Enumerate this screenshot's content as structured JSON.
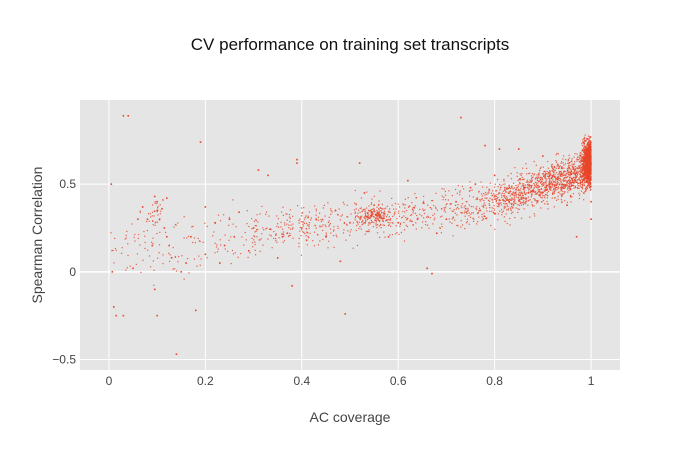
{
  "chart_data": {
    "type": "scatter",
    "title": "CV performance on training set transcripts",
    "xlabel": "AC coverage",
    "ylabel": "Spearman Correlation",
    "xlim": [
      -0.06,
      1.06
    ],
    "ylim": [
      -0.56,
      0.98
    ],
    "x_ticks": [
      0,
      0.2,
      0.4,
      0.6,
      0.8,
      1
    ],
    "x_tick_labels": [
      "0",
      "0.2",
      "0.4",
      "0.6",
      "0.8",
      "1"
    ],
    "y_ticks": [
      -0.5,
      0,
      0.5
    ],
    "y_tick_labels": [
      "−0.5",
      "0",
      "0.5"
    ],
    "grid": true,
    "legend": "none",
    "colors": {
      "marker": "#e8472b",
      "plot_bg": "#e5e5e5",
      "grid": "#ffffff"
    },
    "series": [
      {
        "points": [
          [
            0.03,
            0.89
          ],
          [
            0.04,
            0.89
          ],
          [
            0.005,
            0.5
          ],
          [
            0.007,
            0.0
          ],
          [
            0.01,
            -0.2
          ],
          [
            0.015,
            -0.25
          ],
          [
            0.03,
            -0.25
          ],
          [
            0.05,
            0.02
          ],
          [
            0.06,
            0.3
          ],
          [
            0.07,
            0.37
          ],
          [
            0.08,
            0.3
          ],
          [
            0.09,
            0.15
          ],
          [
            0.095,
            0.43
          ],
          [
            0.1,
            0.4
          ],
          [
            0.1,
            0.35
          ],
          [
            0.105,
            0.3
          ],
          [
            0.11,
            0.36
          ],
          [
            0.115,
            0.25
          ],
          [
            0.12,
            0.42
          ],
          [
            0.12,
            0.2
          ],
          [
            0.125,
            0.15
          ],
          [
            0.13,
            0.08
          ],
          [
            0.095,
            -0.1
          ],
          [
            0.1,
            -0.25
          ],
          [
            0.14,
            -0.47
          ],
          [
            0.15,
            0.0
          ],
          [
            0.16,
            0.05
          ],
          [
            0.17,
            0.2
          ],
          [
            0.18,
            -0.22
          ],
          [
            0.19,
            0.74
          ],
          [
            0.2,
            0.1
          ],
          [
            0.2,
            0.37
          ],
          [
            0.22,
            0.28
          ],
          [
            0.23,
            0.05
          ],
          [
            0.24,
            0.15
          ],
          [
            0.25,
            0.3
          ],
          [
            0.26,
            0.2
          ],
          [
            0.27,
            0.34
          ],
          [
            0.29,
            0.12
          ],
          [
            0.3,
            0.25
          ],
          [
            0.31,
            0.58
          ],
          [
            0.33,
            0.55
          ],
          [
            0.35,
            0.08
          ],
          [
            0.36,
            0.2
          ],
          [
            0.37,
            0.22
          ],
          [
            0.38,
            -0.08
          ],
          [
            0.39,
            0.62
          ],
          [
            0.39,
            0.64
          ],
          [
            0.4,
            0.25
          ],
          [
            0.41,
            0.18
          ],
          [
            0.43,
            0.3
          ],
          [
            0.45,
            0.2
          ],
          [
            0.47,
            0.35
          ],
          [
            0.48,
            0.06
          ],
          [
            0.49,
            -0.24
          ],
          [
            0.5,
            0.28
          ],
          [
            0.52,
            0.62
          ],
          [
            0.53,
            0.45
          ],
          [
            0.55,
            0.38
          ],
          [
            0.56,
            0.32
          ],
          [
            0.58,
            0.2
          ],
          [
            0.6,
            0.28
          ],
          [
            0.62,
            0.52
          ],
          [
            0.64,
            0.3
          ],
          [
            0.66,
            0.02
          ],
          [
            0.67,
            -0.01
          ],
          [
            0.68,
            0.22
          ],
          [
            0.7,
            0.3
          ],
          [
            0.72,
            0.4
          ],
          [
            0.73,
            0.88
          ],
          [
            0.74,
            0.36
          ],
          [
            0.75,
            0.48
          ],
          [
            0.76,
            0.5
          ],
          [
            0.77,
            0.35
          ],
          [
            0.78,
            0.72
          ],
          [
            0.8,
            0.55
          ],
          [
            0.81,
            0.7
          ],
          [
            0.83,
            0.4
          ],
          [
            0.85,
            0.7
          ],
          [
            0.87,
            0.45
          ],
          [
            0.9,
            0.66
          ],
          [
            0.92,
            0.5
          ],
          [
            0.95,
            0.38
          ],
          [
            0.97,
            0.2
          ],
          [
            1.0,
            0.4
          ],
          [
            1.0,
            0.3
          ]
        ]
      }
    ]
  }
}
